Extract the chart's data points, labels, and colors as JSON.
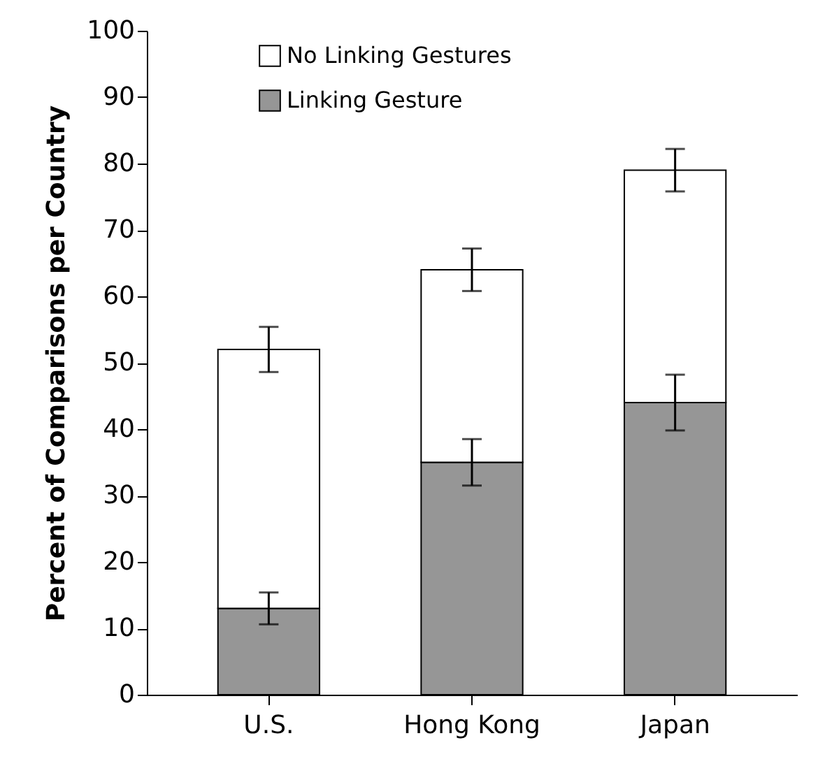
{
  "chart_data": {
    "type": "bar",
    "stacked": true,
    "ylabel": "Percent of Comparisons per Country",
    "categories": [
      "U.S.",
      "Hong Kong",
      "Japan"
    ],
    "series": [
      {
        "name": "Linking Gesture",
        "color": "#969696",
        "values": [
          13,
          35,
          44
        ],
        "errors": [
          2.4,
          3.5,
          4.2
        ]
      },
      {
        "name": "No Linking Gestures",
        "color": "#ffffff",
        "values": [
          39,
          29,
          35
        ],
        "errors": [
          3.4,
          3.2,
          3.2
        ]
      }
    ],
    "ylim": [
      0,
      100
    ],
    "yticks": [
      0,
      10,
      20,
      30,
      40,
      50,
      60,
      70,
      80,
      90,
      100
    ],
    "grid": false,
    "legend": "top left"
  }
}
